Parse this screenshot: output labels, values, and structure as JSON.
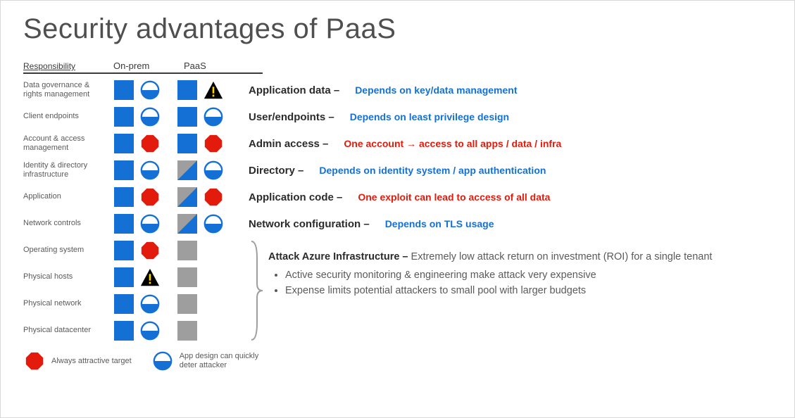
{
  "title": "Security advantages of PaaS",
  "headers": {
    "responsibility": "Responsibility",
    "onprem": "On-prem",
    "paas": "PaaS"
  },
  "colors": {
    "blue_fill": "#1570d6",
    "grey_fill": "#9e9e9e",
    "red_fill": "#e31b0c",
    "warn_fill": "#000000",
    "warn_mark": "#ffd500",
    "half_stroke": "#1570d6",
    "text_blue": "#1570d6",
    "text_red": "#e31b0c",
    "text_grey": "#5a5a5a"
  },
  "rows": [
    {
      "label": "Data governance & rights management",
      "onprem": {
        "square": "blue",
        "icon": "half"
      },
      "paas": {
        "square": "blue",
        "icon": "warn"
      },
      "attack": "Application data –",
      "desc": "Depends on key/data management",
      "desc_color": "blue"
    },
    {
      "label": "Client endpoints",
      "onprem": {
        "square": "blue",
        "icon": "half"
      },
      "paas": {
        "square": "blue",
        "icon": "half"
      },
      "attack": "User/endpoints –",
      "desc": "Depends on least privilege design",
      "desc_color": "blue"
    },
    {
      "label": "Account & access management",
      "onprem": {
        "square": "blue",
        "icon": "oct"
      },
      "paas": {
        "square": "blue",
        "icon": "oct"
      },
      "attack": "Admin access –",
      "desc": "One account → access to all apps / data / infra",
      "desc_color": "red"
    },
    {
      "label": "Identity & directory infrastructure",
      "onprem": {
        "square": "blue",
        "icon": "half"
      },
      "paas": {
        "square": "diag",
        "icon": "half"
      },
      "attack": "Directory –",
      "desc": "Depends on identity system / app authentication",
      "desc_color": "blue"
    },
    {
      "label": "Application",
      "onprem": {
        "square": "blue",
        "icon": "oct"
      },
      "paas": {
        "square": "diag",
        "icon": "oct"
      },
      "attack": "Application code –",
      "desc": "One exploit can lead to access of all data",
      "desc_color": "red"
    },
    {
      "label": "Network controls",
      "onprem": {
        "square": "blue",
        "icon": "half"
      },
      "paas": {
        "square": "diag",
        "icon": "half"
      },
      "attack": "Network configuration –",
      "desc": "Depends on TLS usage",
      "desc_color": "blue"
    }
  ],
  "infra_rows": [
    {
      "label": "Operating system",
      "onprem": {
        "square": "blue",
        "icon": "oct"
      },
      "paas": {
        "square": "grey",
        "icon": null
      }
    },
    {
      "label": "Physical hosts",
      "onprem": {
        "square": "blue",
        "icon": "warn"
      },
      "paas": {
        "square": "grey",
        "icon": null
      }
    },
    {
      "label": "Physical network",
      "onprem": {
        "square": "blue",
        "icon": "half"
      },
      "paas": {
        "square": "grey",
        "icon": null
      }
    },
    {
      "label": "Physical datacenter",
      "onprem": {
        "square": "blue",
        "icon": "half"
      },
      "paas": {
        "square": "grey",
        "icon": null
      }
    }
  ],
  "infra_text": {
    "heading": "Attack Azure Infrastructure –",
    "sub": "Extremely low attack return on investment (ROI) for a single tenant",
    "bullets": [
      "Active security monitoring & engineering make attack very expensive",
      "Expense limits potential attackers to small pool with larger budgets"
    ]
  },
  "legend": {
    "oct": "Always attractive target",
    "half": "App design can quickly deter attacker"
  }
}
